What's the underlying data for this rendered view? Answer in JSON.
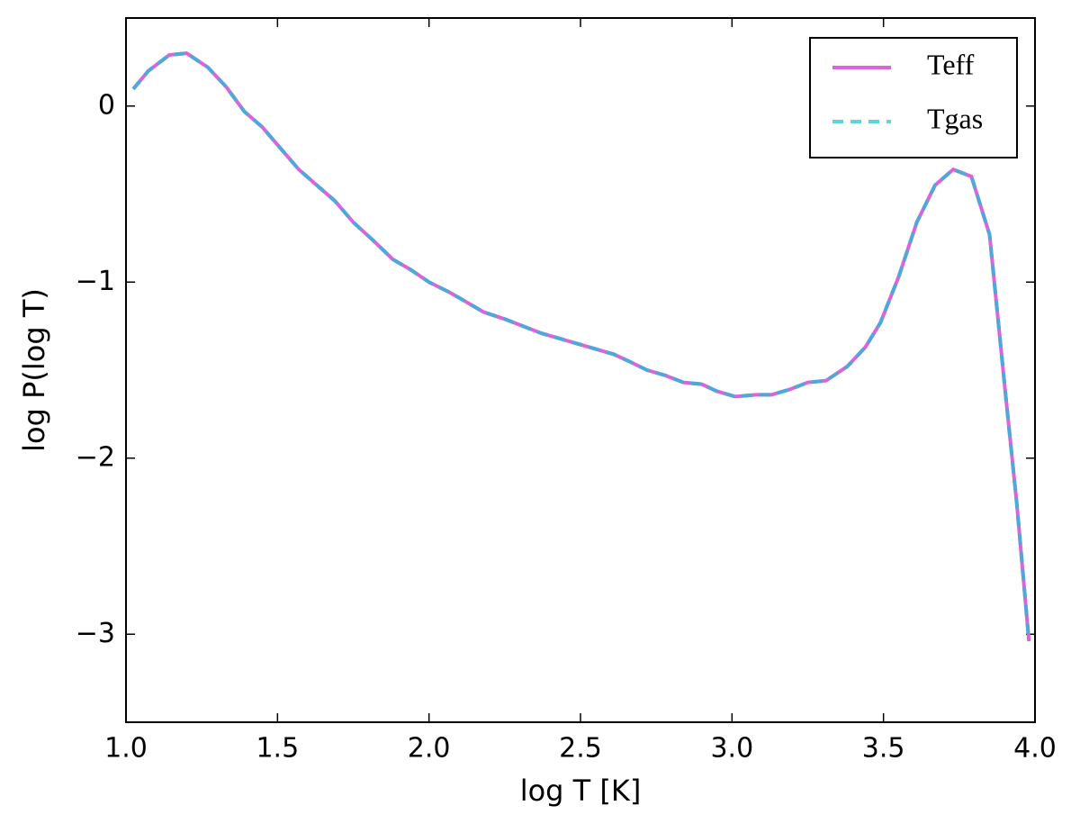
{
  "chart_data": {
    "type": "line",
    "xlabel": "log T [K]",
    "ylabel": "log P(log T)",
    "x": [
      1.024,
      1.074,
      1.143,
      1.2,
      1.27,
      1.33,
      1.39,
      1.45,
      1.5,
      1.57,
      1.63,
      1.69,
      1.75,
      1.82,
      1.88,
      1.94,
      2.0,
      2.07,
      2.12,
      2.18,
      2.25,
      2.31,
      2.37,
      2.43,
      2.49,
      2.55,
      2.61,
      2.66,
      2.72,
      2.78,
      2.84,
      2.9,
      2.95,
      3.01,
      3.08,
      3.13,
      3.19,
      3.25,
      3.31,
      3.38,
      3.44,
      3.49,
      3.55,
      3.61,
      3.67,
      3.73,
      3.79,
      3.85,
      3.9,
      3.94,
      3.98
    ],
    "series": [
      {
        "name": "Teff",
        "color": "#d966d9",
        "style": "solid",
        "values": [
          0.097,
          0.2,
          0.29,
          0.3,
          0.22,
          0.11,
          -0.03,
          -0.12,
          -0.22,
          -0.36,
          -0.45,
          -0.54,
          -0.66,
          -0.77,
          -0.87,
          -0.93,
          -1.0,
          -1.06,
          -1.11,
          -1.17,
          -1.21,
          -1.25,
          -1.29,
          -1.32,
          -1.35,
          -1.38,
          -1.41,
          -1.45,
          -1.5,
          -1.53,
          -1.57,
          -1.58,
          -1.62,
          -1.65,
          -1.64,
          -1.64,
          -1.61,
          -1.57,
          -1.56,
          -1.48,
          -1.37,
          -1.23,
          -0.97,
          -0.66,
          -0.45,
          -0.36,
          -0.4,
          -0.73,
          -1.59,
          -2.26,
          -3.04
        ]
      },
      {
        "name": "Tgas",
        "color": "#4fa8d8",
        "style": "dashed",
        "values": [
          0.097,
          0.2,
          0.29,
          0.3,
          0.22,
          0.11,
          -0.03,
          -0.12,
          -0.22,
          -0.36,
          -0.45,
          -0.54,
          -0.66,
          -0.77,
          -0.87,
          -0.93,
          -1.0,
          -1.06,
          -1.11,
          -1.17,
          -1.21,
          -1.25,
          -1.29,
          -1.32,
          -1.35,
          -1.38,
          -1.41,
          -1.45,
          -1.5,
          -1.53,
          -1.57,
          -1.58,
          -1.62,
          -1.65,
          -1.64,
          -1.64,
          -1.61,
          -1.57,
          -1.56,
          -1.48,
          -1.37,
          -1.23,
          -0.97,
          -0.66,
          -0.45,
          -0.36,
          -0.4,
          -0.73,
          -1.59,
          -2.26,
          -3.04
        ]
      }
    ],
    "legend_color_Tgas": "#5cd6d6",
    "xlim": [
      1.0,
      4.0
    ],
    "xticks": [
      {
        "value": 1,
        "label": "1.0"
      },
      1.5,
      {
        "value": 2,
        "label": "2.0"
      },
      2.5,
      {
        "value": 3,
        "label": "3.0"
      },
      3.5,
      {
        "value": 4,
        "label": "4.0"
      }
    ],
    "ylim": [
      -3.5,
      0.5
    ],
    "yticks": [
      {
        "value": -3,
        "label": "−3"
      },
      {
        "value": -2,
        "label": "−2"
      },
      {
        "value": -1,
        "label": "−1"
      },
      0
    ],
    "legend": "upper right"
  }
}
